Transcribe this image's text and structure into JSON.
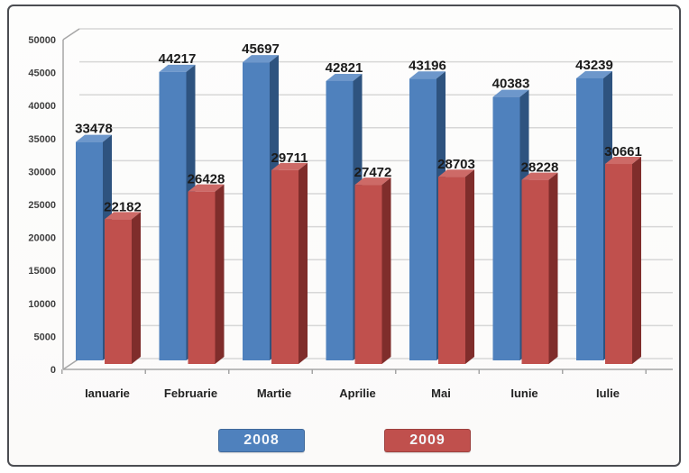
{
  "chart_data": {
    "type": "bar",
    "style": "3d-column",
    "title": "",
    "xlabel": "",
    "ylabel": "",
    "categories": [
      "Ianuarie",
      "Februarie",
      "Martie",
      "Aprilie",
      "Mai",
      "Iunie",
      "Iulie"
    ],
    "series": [
      {
        "name": "2008",
        "color": "#4f81bd",
        "values": [
          33478,
          44217,
          45697,
          42821,
          43196,
          40383,
          43239
        ]
      },
      {
        "name": "2009",
        "color": "#c0504d",
        "values": [
          22182,
          26428,
          29711,
          27472,
          28703,
          28228,
          30661
        ]
      }
    ],
    "ylim": [
      0,
      50000
    ],
    "ytick_step": 5000,
    "ytick_labels": [
      "0",
      "5000",
      "10000",
      "15000",
      "20000",
      "25000",
      "30000",
      "35000",
      "40000",
      "45000",
      "50000"
    ],
    "grid": true,
    "data_labels": true,
    "legend_position": "bottom",
    "legend": [
      "2008",
      "2009"
    ]
  },
  "colors": {
    "bar_2008_front": "#4f81bd",
    "bar_2008_side": "#2e537f",
    "bar_2008_top": "#6d97cb",
    "bar_2009_front": "#c0504d",
    "bar_2009_side": "#7f2d2b",
    "bar_2009_top": "#cd6a67",
    "gridline": "#d7d7d7",
    "axis": "#a6a6a6",
    "label_text": "#1b1b1b",
    "tick_label_text": "#3f3f3f",
    "frame_border": "#4b4d52",
    "background": "#ffffff"
  }
}
